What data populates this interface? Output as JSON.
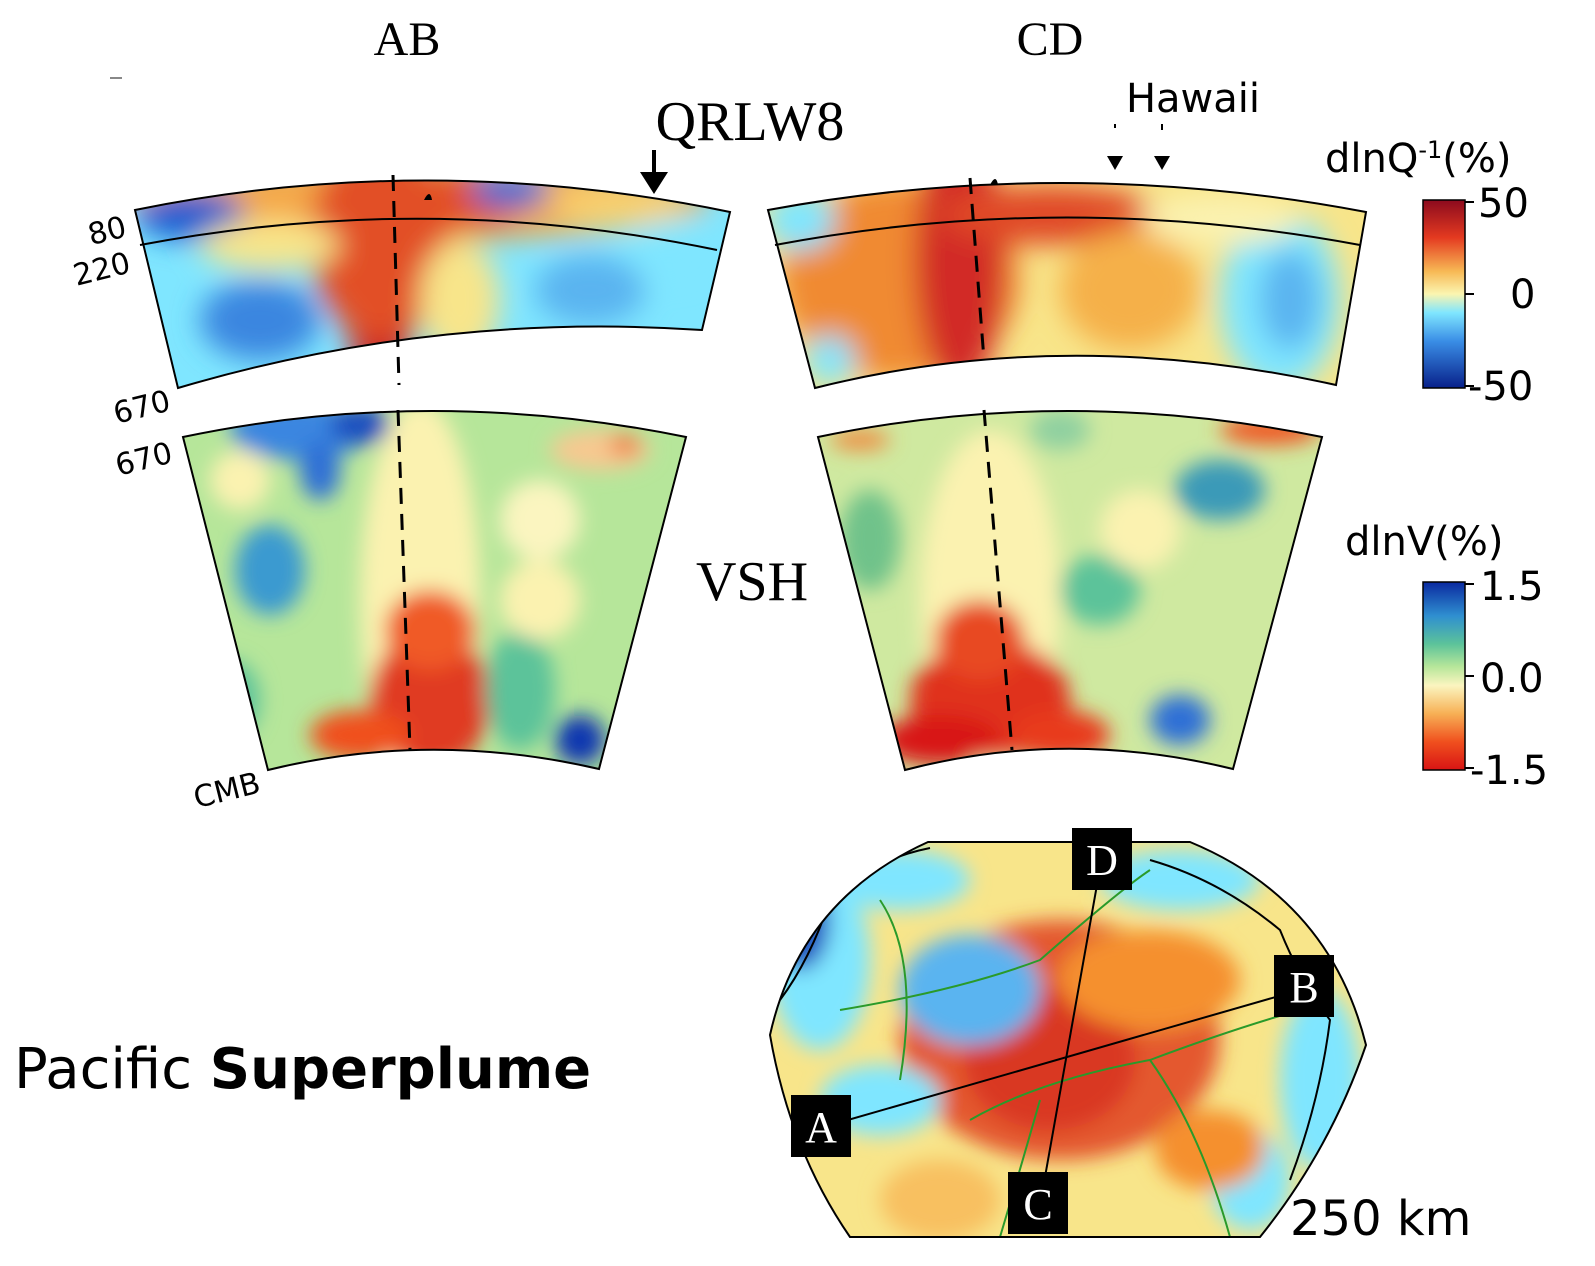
{
  "titles": {
    "left_section": "AB",
    "right_section": "CD",
    "upper_model": "QRLW8",
    "lower_model": "VSH"
  },
  "hotspot_label": "Hawaii",
  "depth_labels": {
    "d80": "80",
    "d220": "220",
    "d670_upper": "670",
    "d670_lower": "670",
    "cmb": "CMB"
  },
  "colorbars": [
    {
      "title_main": "dlnQ",
      "title_sup": "-1",
      "title_tail": "(%)",
      "ticks": [
        "50",
        "0",
        "-50"
      ],
      "palette": "red-to-blue"
    },
    {
      "title_main": "dlnV(%)",
      "ticks": [
        "1.5",
        "0.0",
        "-1.5"
      ],
      "palette": "blue-to-red"
    }
  ],
  "map": {
    "depth_label": "250 km",
    "profile_markers": [
      "A",
      "B",
      "C",
      "D"
    ]
  },
  "caption": {
    "plain": "Pacific ",
    "bold": "Superplume"
  },
  "colors": {
    "deep_red": "#b0102a",
    "red": "#e43a20",
    "orange": "#f39a3a",
    "yellow": "#f8e58a",
    "cream": "#fbf5c8",
    "light_green": "#a9e08f",
    "green": "#6fc28a",
    "cyan": "#7fe6ff",
    "light_blue": "#5ab4f0",
    "blue": "#2d6fd6",
    "navy": "#0a2a8c"
  }
}
